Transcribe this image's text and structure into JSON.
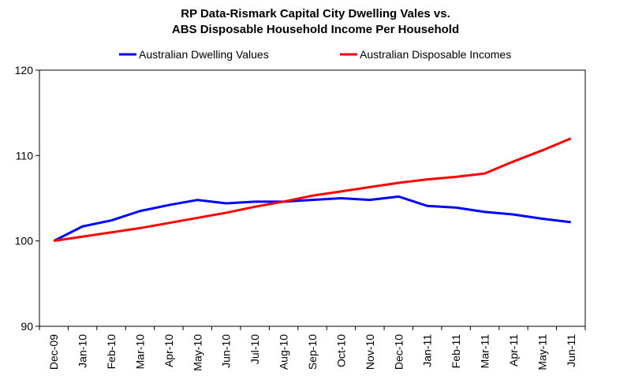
{
  "chart_data": {
    "type": "line",
    "title_line1": "RP Data-Rismark Capital City Dwelling Vales vs.",
    "title_line2": "ABS Disposable Household Income Per Household",
    "xlabel": "",
    "ylabel": "",
    "categories": [
      "Dec-09",
      "Jan-10",
      "Feb-10",
      "Mar-10",
      "Apr-10",
      "May-10",
      "Jun-10",
      "Jul-10",
      "Aug-10",
      "Sep-10",
      "Oct-10",
      "Nov-10",
      "Dec-10",
      "Jan-11",
      "Feb-11",
      "Mar-11",
      "Apr-11",
      "May-11",
      "Jun-11"
    ],
    "ylim": [
      90,
      120
    ],
    "yticks": [
      90,
      100,
      110,
      120
    ],
    "grid": false,
    "legend_position": "top",
    "series": [
      {
        "name": "Australian Dwelling Values",
        "color": "#0000ff",
        "values": [
          100.0,
          101.7,
          102.4,
          103.5,
          104.2,
          104.8,
          104.4,
          104.6,
          104.6,
          104.8,
          105.0,
          104.8,
          105.2,
          104.1,
          103.9,
          103.4,
          103.1,
          102.6,
          102.2
        ]
      },
      {
        "name": "Australian Disposable Incomes",
        "color": "#ff0000",
        "values": [
          100.0,
          100.5,
          101.0,
          101.5,
          102.1,
          102.7,
          103.3,
          104.0,
          104.6,
          105.3,
          105.8,
          106.3,
          106.8,
          107.2,
          107.5,
          107.9,
          109.3,
          110.6,
          112.0
        ]
      }
    ]
  }
}
